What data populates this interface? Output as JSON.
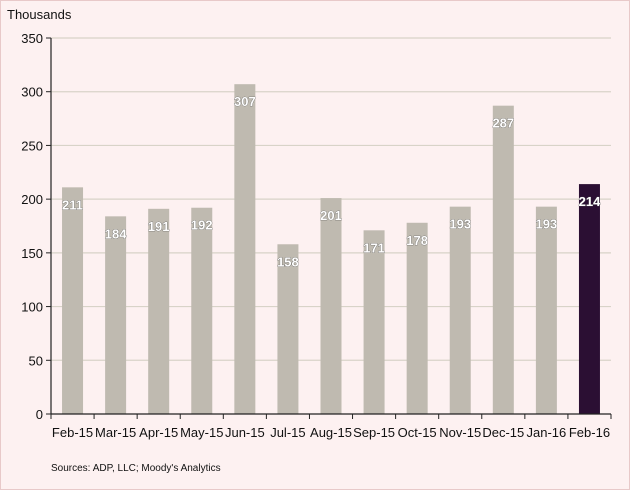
{
  "chart_data": {
    "type": "bar",
    "ylabel": "Thousands",
    "categories": [
      "Feb-15",
      "Mar-15",
      "Apr-15",
      "May-15",
      "Jun-15",
      "Jul-15",
      "Aug-15",
      "Sep-15",
      "Oct-15",
      "Nov-15",
      "Dec-15",
      "Jan-16",
      "Feb-16"
    ],
    "values": [
      211,
      184,
      191,
      192,
      307,
      158,
      201,
      171,
      178,
      193,
      287,
      193,
      214
    ],
    "ylim": [
      0,
      350
    ],
    "yticks": [
      0,
      50,
      100,
      150,
      200,
      250,
      300,
      350
    ],
    "grid": true,
    "legend": "none",
    "bar_color": "#bfbab0",
    "highlight_color": "#2b0f33",
    "highlight_category": "Feb-16",
    "source": "Sources: ADP, LLC; Moody's Analytics"
  }
}
